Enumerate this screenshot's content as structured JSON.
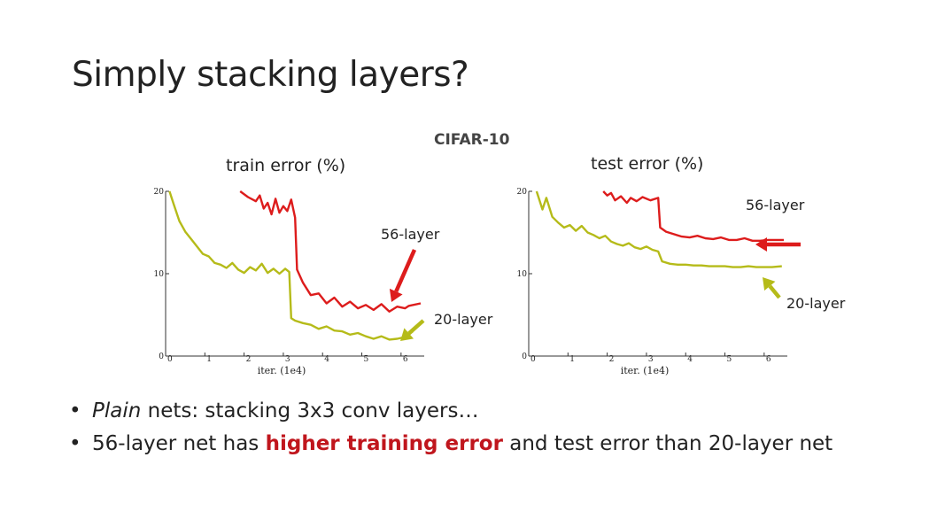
{
  "slide": {
    "title": "Simply stacking layers?",
    "dataset_label": "CIFAR-10",
    "bullets": {
      "b1_em": "Plain",
      "b1_rest": " nets: stacking 3x3 conv layers…",
      "b2_pre": "56-layer net has ",
      "b2_highlight": "higher training error",
      "b2_post": " and test error than 20-layer net"
    },
    "colors": {
      "deep": "#dd1c1c",
      "shallow": "#b5bb19",
      "highlight_text": "#c0161d"
    }
  },
  "chart_data": [
    {
      "type": "line",
      "title": "train error (%)",
      "xlabel": "iter. (1e4)",
      "xlim": [
        0,
        6.5
      ],
      "ylim": [
        0,
        20
      ],
      "xticks": [
        "0",
        "1",
        "2",
        "3",
        "4",
        "5",
        "6"
      ],
      "yticks": [
        "0",
        "10",
        "20"
      ],
      "annotations": [
        "56-layer",
        "20-layer"
      ],
      "series": [
        {
          "name": "56-layer",
          "color": "#dd1c1c",
          "x": [
            1.9,
            2.1,
            2.3,
            2.4,
            2.5,
            2.6,
            2.7,
            2.8,
            2.9,
            3.0,
            3.1,
            3.2,
            3.3,
            3.35,
            3.5,
            3.7,
            3.9,
            4.1,
            4.3,
            4.5,
            4.7,
            4.9,
            5.1,
            5.3,
            5.5,
            5.7,
            5.9,
            6.1,
            6.2,
            6.5
          ],
          "y": [
            20,
            19.3,
            18.8,
            19.5,
            17.9,
            18.6,
            17.2,
            19.1,
            17.4,
            18.2,
            17.6,
            19.0,
            16.8,
            10.5,
            8.9,
            7.4,
            7.6,
            6.4,
            7.1,
            6.0,
            6.6,
            5.8,
            6.2,
            5.6,
            6.3,
            5.4,
            6.0,
            5.8,
            6.1,
            6.4
          ]
        },
        {
          "name": "20-layer",
          "color": "#b5bb19",
          "x": [
            0.1,
            0.2,
            0.35,
            0.5,
            0.65,
            0.8,
            0.95,
            1.1,
            1.25,
            1.4,
            1.55,
            1.7,
            1.85,
            2.0,
            2.15,
            2.3,
            2.45,
            2.6,
            2.75,
            2.9,
            3.05,
            3.15,
            3.2,
            3.3,
            3.5,
            3.7,
            3.9,
            4.1,
            4.3,
            4.5,
            4.7,
            4.9,
            5.1,
            5.3,
            5.5,
            5.7,
            5.9,
            6.1,
            6.3
          ],
          "y": [
            20,
            18.5,
            16.4,
            15.1,
            14.2,
            13.3,
            12.4,
            12.1,
            11.3,
            11.1,
            10.7,
            11.3,
            10.5,
            10.1,
            10.8,
            10.4,
            11.2,
            10.1,
            10.6,
            10.0,
            10.6,
            10.2,
            4.6,
            4.3,
            4.0,
            3.8,
            3.3,
            3.6,
            3.1,
            3.0,
            2.6,
            2.8,
            2.4,
            2.1,
            2.4,
            2.0,
            2.1,
            2.3,
            3.0
          ]
        }
      ]
    },
    {
      "type": "line",
      "title": "test error (%)",
      "xlabel": "iter. (1e4)",
      "xlim": [
        0,
        6.5
      ],
      "ylim": [
        0,
        20
      ],
      "xticks": [
        "0",
        "1",
        "2",
        "3",
        "4",
        "5",
        "6"
      ],
      "yticks": [
        "0",
        "10",
        "20"
      ],
      "annotations": [
        "56-layer",
        "20-layer"
      ],
      "series": [
        {
          "name": "56-layer",
          "color": "#dd1c1c",
          "x": [
            1.9,
            2.0,
            2.1,
            2.2,
            2.35,
            2.5,
            2.6,
            2.75,
            2.9,
            3.1,
            3.3,
            3.35,
            3.5,
            3.7,
            3.9,
            4.1,
            4.3,
            4.5,
            4.7,
            4.9,
            5.1,
            5.3,
            5.5,
            5.7,
            5.9,
            6.1,
            6.3,
            6.5
          ],
          "y": [
            20,
            19.5,
            19.8,
            18.9,
            19.4,
            18.6,
            19.2,
            18.8,
            19.3,
            18.9,
            19.2,
            15.6,
            15.1,
            14.8,
            14.5,
            14.4,
            14.6,
            14.3,
            14.2,
            14.4,
            14.1,
            14.1,
            14.3,
            14.0,
            14.0,
            14.1,
            14.1,
            14.1
          ]
        },
        {
          "name": "20-layer",
          "color": "#b5bb19",
          "x": [
            0.2,
            0.35,
            0.45,
            0.6,
            0.75,
            0.9,
            1.05,
            1.2,
            1.35,
            1.5,
            1.65,
            1.8,
            1.95,
            2.1,
            2.25,
            2.4,
            2.55,
            2.7,
            2.85,
            3.0,
            3.15,
            3.3,
            3.4,
            3.6,
            3.8,
            4.0,
            4.2,
            4.4,
            4.6,
            4.8,
            5.0,
            5.2,
            5.4,
            5.6,
            5.8,
            6.0,
            6.2,
            6.45
          ],
          "y": [
            20,
            17.8,
            19.2,
            16.9,
            16.2,
            15.6,
            15.9,
            15.2,
            15.8,
            15.0,
            14.7,
            14.3,
            14.6,
            13.9,
            13.6,
            13.4,
            13.7,
            13.2,
            13.0,
            13.3,
            12.9,
            12.7,
            11.5,
            11.2,
            11.1,
            11.1,
            11.0,
            11.0,
            10.9,
            10.9,
            10.9,
            10.8,
            10.8,
            10.9,
            10.8,
            10.8,
            10.8,
            10.9
          ]
        }
      ]
    }
  ]
}
